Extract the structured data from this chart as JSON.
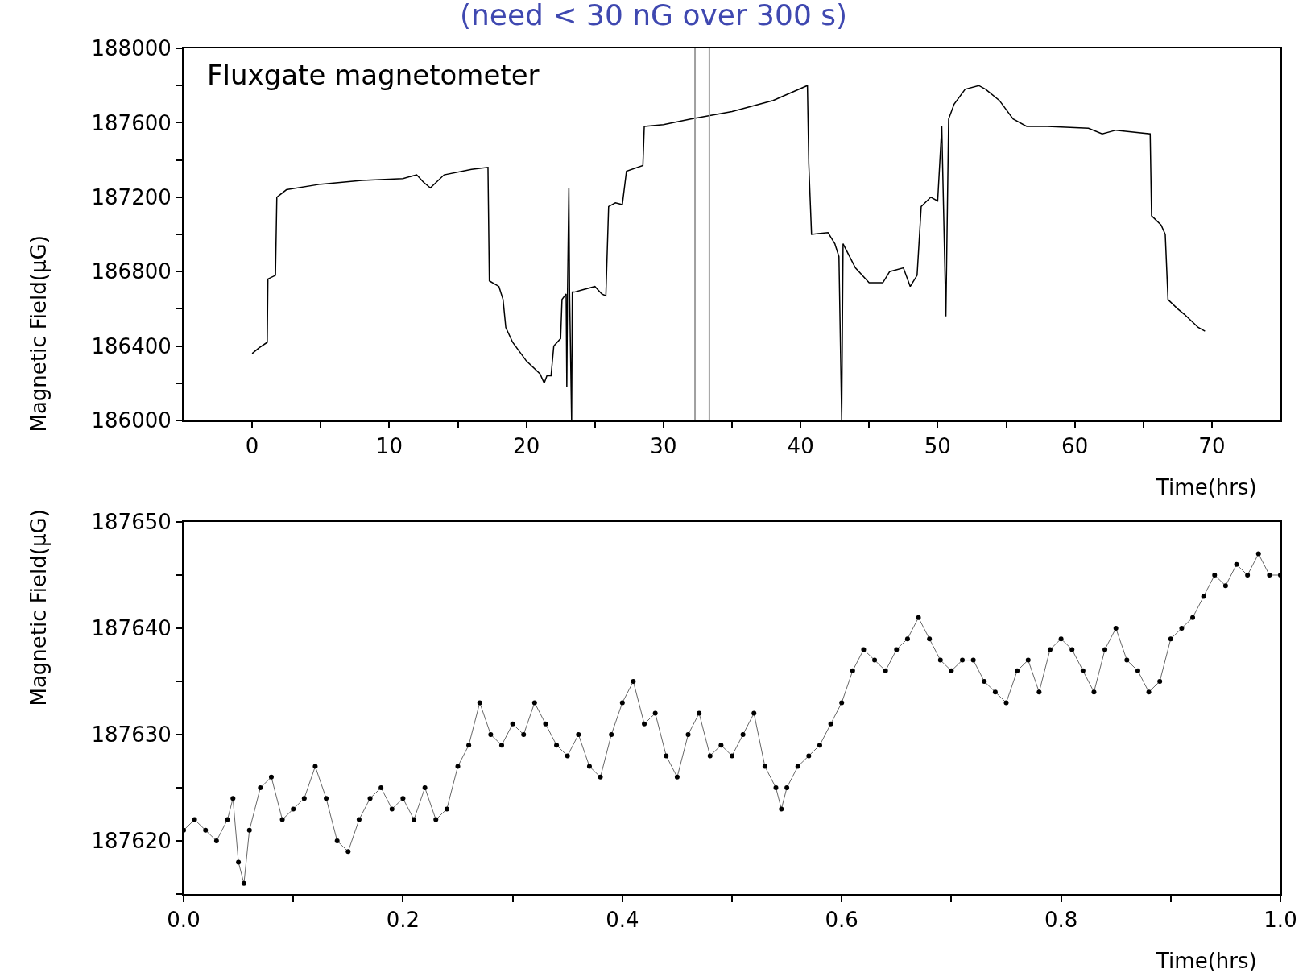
{
  "chart_data": [
    {
      "type": "line",
      "title": "(need < 30 nG over 300 s)",
      "xlabel": "Time(hrs)",
      "ylabel": "Magnetic Field(μG)",
      "marker": "none",
      "annotations": [
        "Fluxgate magnetometer"
      ],
      "xlim": [
        -5,
        75
      ],
      "ylim": [
        186000,
        188000
      ],
      "xticks": [
        0,
        {
          "value": 5,
          "label": null
        },
        10,
        {
          "value": 15,
          "label": null
        },
        20,
        {
          "value": 25,
          "label": null
        },
        30,
        {
          "value": 35,
          "label": null
        },
        40,
        {
          "value": 45,
          "label": null
        },
        50,
        {
          "value": 55,
          "label": null
        },
        60,
        {
          "value": 65,
          "label": null
        },
        70
      ],
      "yticks": [
        186000,
        {
          "value": 186200,
          "label": null
        },
        186400,
        {
          "value": 186600,
          "label": null
        },
        186800,
        {
          "value": 187000,
          "label": null
        },
        187200,
        {
          "value": 187400,
          "label": null
        },
        187600,
        {
          "value": 187800,
          "label": null
        },
        188000
      ],
      "ref_lines": [
        {
          "axis": "x",
          "value": 32.3,
          "color": "#a0a0a0"
        },
        {
          "axis": "x",
          "value": 33.35,
          "color": "#a0a0a0"
        }
      ],
      "x": [
        0,
        0.5,
        1.1,
        1.15,
        1.7,
        1.8,
        2.5,
        5,
        8,
        11,
        12,
        12.5,
        13,
        14,
        16,
        17.2,
        17.3,
        18,
        18.3,
        18.5,
        19,
        20,
        21,
        21.3,
        21.5,
        21.8,
        22,
        22.5,
        22.6,
        22.9,
        22.95,
        23.0,
        23.1,
        23.15,
        23.3,
        23.35,
        23.5,
        24,
        25,
        25.5,
        25.8,
        26,
        26.5,
        27,
        27.3,
        28.5,
        28.6,
        30,
        32,
        35,
        38,
        40.5,
        40.6,
        40.8,
        42,
        42.5,
        42.8,
        43.0,
        43.1,
        44,
        45,
        46,
        46.5,
        47.5,
        48,
        48.5,
        48.8,
        49.5,
        50,
        50.3,
        50.6,
        50.8,
        51.2,
        52,
        53,
        53.5,
        54.5,
        55.5,
        56.5,
        58,
        61,
        62,
        63,
        65.5,
        65.6,
        66.3,
        66.6,
        66.8,
        67.5,
        68,
        69,
        69.5
      ],
      "series": [
        {
          "color": "#000000",
          "values": [
            186360,
            186390,
            186420,
            186760,
            186780,
            187200,
            187240,
            187270,
            187290,
            187300,
            187320,
            187280,
            187250,
            187320,
            187350,
            187360,
            186750,
            186720,
            186650,
            186500,
            186420,
            186320,
            186250,
            186200,
            186240,
            186240,
            186400,
            186440,
            186650,
            186680,
            186180,
            186680,
            187250,
            186700,
            186000,
            186690,
            186690,
            186700,
            186720,
            186680,
            186670,
            187150,
            187170,
            187160,
            187340,
            187370,
            187580,
            187590,
            187620,
            187660,
            187720,
            187800,
            187380,
            187000,
            187010,
            186950,
            186880,
            186000,
            186950,
            186820,
            186740,
            186740,
            186800,
            186820,
            186720,
            186780,
            187150,
            187200,
            187180,
            187580,
            186560,
            187620,
            187700,
            187780,
            187800,
            187780,
            187720,
            187620,
            187580,
            187580,
            187570,
            187540,
            187560,
            187540,
            187100,
            187050,
            187000,
            186650,
            186600,
            186570,
            186500,
            186480
          ]
        }
      ]
    },
    {
      "type": "line",
      "xlabel": "Time(hrs)",
      "ylabel": "Magnetic Field(μG)",
      "marker": "circle",
      "xlim": [
        0,
        1
      ],
      "ylim": [
        187615,
        187650
      ],
      "xticks": [
        {
          "value": 0,
          "label": "0.0"
        },
        {
          "value": 0.1,
          "label": null
        },
        0.2,
        {
          "value": 0.3,
          "label": null
        },
        0.4,
        {
          "value": 0.5,
          "label": null
        },
        0.6,
        {
          "value": 0.7,
          "label": null
        },
        0.8,
        {
          "value": 0.9,
          "label": null
        },
        {
          "value": 1,
          "label": "1.0"
        }
      ],
      "yticks": [
        {
          "value": 187615,
          "label": null
        },
        187620,
        {
          "value": 187625,
          "label": null
        },
        187630,
        {
          "value": 187635,
          "label": null
        },
        187640,
        {
          "value": 187645,
          "label": null
        },
        187650
      ],
      "x": [
        0,
        0.01,
        0.02,
        0.03,
        0.04,
        0.045,
        0.05,
        0.055,
        0.06,
        0.07,
        0.08,
        0.09,
        0.1,
        0.11,
        0.12,
        0.13,
        0.14,
        0.15,
        0.16,
        0.17,
        0.18,
        0.19,
        0.2,
        0.21,
        0.22,
        0.23,
        0.24,
        0.25,
        0.26,
        0.27,
        0.28,
        0.29,
        0.3,
        0.31,
        0.32,
        0.33,
        0.34,
        0.35,
        0.36,
        0.37,
        0.38,
        0.39,
        0.4,
        0.41,
        0.42,
        0.43,
        0.44,
        0.45,
        0.46,
        0.47,
        0.48,
        0.49,
        0.5,
        0.51,
        0.52,
        0.53,
        0.54,
        0.545,
        0.55,
        0.56,
        0.57,
        0.58,
        0.59,
        0.6,
        0.61,
        0.62,
        0.63,
        0.64,
        0.65,
        0.66,
        0.67,
        0.68,
        0.69,
        0.7,
        0.71,
        0.72,
        0.73,
        0.74,
        0.75,
        0.76,
        0.77,
        0.78,
        0.79,
        0.8,
        0.81,
        0.82,
        0.83,
        0.84,
        0.85,
        0.86,
        0.87,
        0.88,
        0.89,
        0.9,
        0.91,
        0.92,
        0.93,
        0.94,
        0.95,
        0.96,
        0.97,
        0.98,
        0.99,
        1.0
      ],
      "series": [
        {
          "color": "#000000",
          "values": [
            187621,
            187622,
            187621,
            187620,
            187622,
            187624,
            187618,
            187616,
            187621,
            187625,
            187626,
            187622,
            187623,
            187624,
            187627,
            187624,
            187620,
            187619,
            187622,
            187624,
            187625,
            187623,
            187624,
            187622,
            187625,
            187622,
            187623,
            187627,
            187629,
            187633,
            187630,
            187629,
            187631,
            187630,
            187633,
            187631,
            187629,
            187628,
            187630,
            187627,
            187626,
            187630,
            187633,
            187635,
            187631,
            187632,
            187628,
            187626,
            187630,
            187632,
            187628,
            187629,
            187628,
            187630,
            187632,
            187627,
            187625,
            187623,
            187625,
            187627,
            187628,
            187629,
            187631,
            187633,
            187636,
            187638,
            187637,
            187636,
            187638,
            187639,
            187641,
            187639,
            187637,
            187636,
            187637,
            187637,
            187635,
            187634,
            187633,
            187636,
            187637,
            187634,
            187638,
            187639,
            187638,
            187636,
            187634,
            187638,
            187640,
            187637,
            187636,
            187634,
            187635,
            187639,
            187640,
            187641,
            187643,
            187645,
            187644,
            187646,
            187645,
            187647,
            187645,
            187645
          ]
        }
      ]
    }
  ]
}
